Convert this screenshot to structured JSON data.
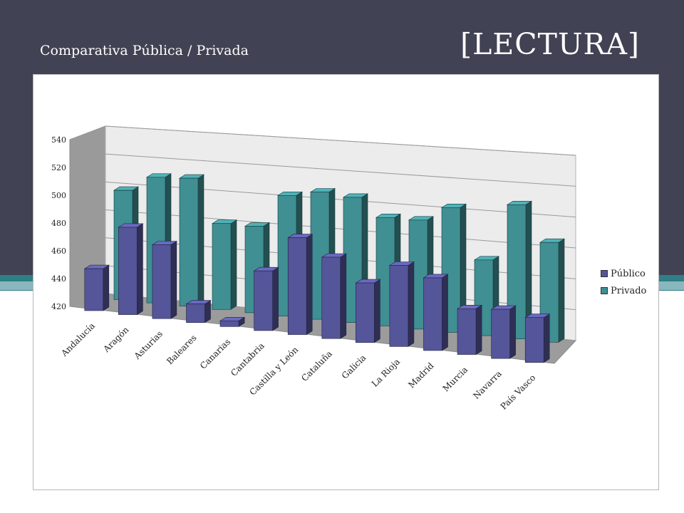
{
  "header": {
    "subtitle": "Comparativa Pública / Privada",
    "title": "[LECTURA]"
  },
  "colors": {
    "header_bg": "#414253",
    "publico": "#55559a",
    "privado": "#3f8f93"
  },
  "chart_data": {
    "type": "bar",
    "style": "3d-clustered-perspective",
    "title": "",
    "xlabel": "",
    "ylabel": "",
    "ylim": [
      420,
      540
    ],
    "yticks": [
      "420",
      "440",
      "460",
      "480",
      "500",
      "520",
      "540"
    ],
    "grid": true,
    "legend_position": "right",
    "categories": [
      "Andalucía",
      "Aragón",
      "Asturias",
      "Baleares",
      "Canarias",
      "Cantabria",
      "Castilla y León",
      "Cataluña",
      "Galicia",
      "La Rioja",
      "Madrid",
      "Murcia",
      "Navarra",
      "País Vasco"
    ],
    "series": [
      {
        "name": "Público",
        "values": [
          450,
          482,
          472,
          433,
          424,
          461,
          486,
          475,
          460,
          474,
          468,
          450,
          452,
          449
        ]
      },
      {
        "name": "Privado",
        "values": [
          498,
          509,
          510,
          480,
          480,
          503,
          507,
          505,
          493,
          493,
          503,
          470,
          508,
          485
        ]
      }
    ]
  }
}
